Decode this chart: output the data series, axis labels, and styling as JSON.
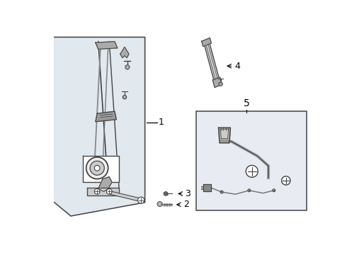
{
  "bg_color": "#ffffff",
  "panel_fill": "#dce4ec",
  "part_gray": "#888888",
  "part_dark": "#555555",
  "outline": "#444444",
  "label_color": "#000000",
  "box5_fill": "#e8ecf2"
}
